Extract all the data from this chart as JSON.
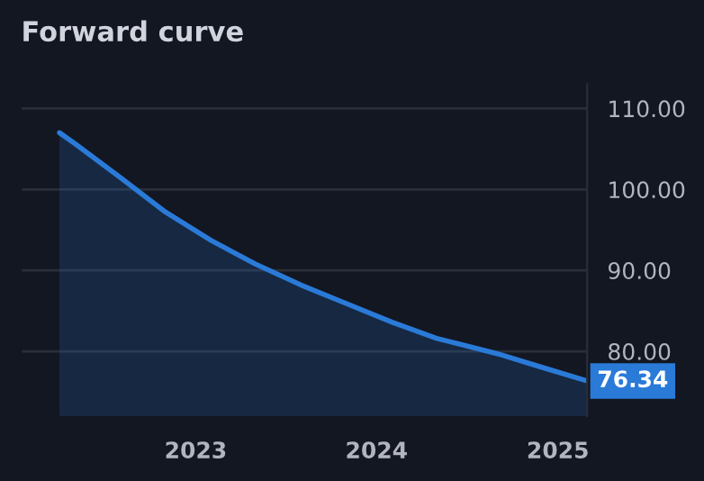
{
  "chart_data": {
    "type": "area",
    "title": "Forward curve",
    "x": [
      "2022-04",
      "2022-05",
      "2022-08",
      "2022-11",
      "2023-02",
      "2023-05",
      "2023-08",
      "2023-11",
      "2024-02",
      "2024-05",
      "2024-09",
      "2024-12",
      "2025-03"
    ],
    "series": [
      {
        "color": "#2a7ad8",
        "values": [
          107.0,
          105.7,
          101.5,
          97.2,
          93.7,
          90.8,
          88.2,
          85.9,
          83.6,
          81.6,
          79.7,
          78.0,
          76.34
        ],
        "value_labels": [
          null,
          null,
          null,
          null,
          null,
          null,
          null,
          null,
          null,
          null,
          null,
          null,
          "76.34"
        ]
      }
    ],
    "xlim": [
      "2022-01-15",
      "2025-03-01"
    ],
    "xticks": [
      {
        "value": "2023-01-01",
        "label": "2023"
      },
      {
        "value": "2024-01-01",
        "label": "2024"
      },
      {
        "value": "2025-01-01",
        "label": "2025"
      }
    ],
    "ylim": [
      72,
      113
    ],
    "yticks": [
      {
        "value": 80,
        "label": "80.00"
      },
      {
        "value": 90,
        "label": "90.00"
      },
      {
        "value": 100,
        "label": "100.00"
      },
      {
        "value": 110,
        "label": "110.00"
      }
    ],
    "grid": "y",
    "marker": "none",
    "line_style": "solid"
  }
}
